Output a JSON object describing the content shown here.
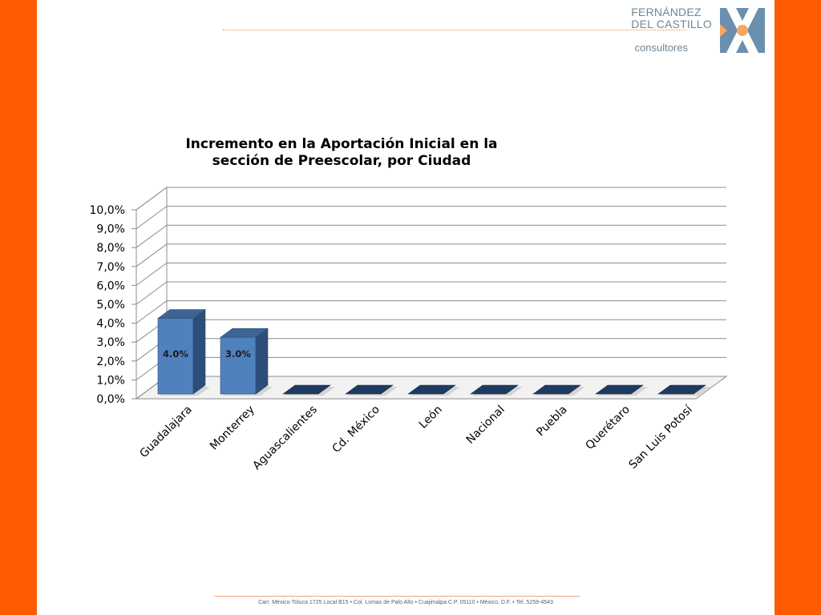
{
  "header": {
    "brand_line1": "FERNÁNDEZ",
    "brand_line2": "DEL CASTILLO",
    "brand_sub": "consultores",
    "logo_icon": "x-logo-icon",
    "accent_color": "#ff5a00",
    "logo_color": "#6b8fae"
  },
  "footer": {
    "address": "Carr. México-Toluca 1725 Local B15 • Col. Lomas de Palo Alto • Cuajimalpa C.P. 05110 • México, D.F. • Tel. 5259-4543"
  },
  "chart_data": {
    "type": "bar",
    "title_line1": "Incremento en la Aportación Inicial en la",
    "title_line2": "sección de Preescolar, por Ciudad",
    "categories": [
      "Guadalajara",
      "Monterrey",
      "Aguascalientes",
      "Cd. México",
      "León",
      "Nacional",
      "Puebla",
      "Querétaro",
      "San Luis Potosí"
    ],
    "values": [
      4.0,
      3.0,
      0,
      0,
      0,
      0,
      0,
      0,
      0
    ],
    "data_labels": [
      "4.0%",
      "3.0%",
      "",
      "",
      "",
      "",
      "",
      "",
      ""
    ],
    "ylim": [
      0,
      10
    ],
    "y_ticks": [
      "0,0%",
      "1,0%",
      "2,0%",
      "3,0%",
      "4,0%",
      "5,0%",
      "6,0%",
      "7,0%",
      "8,0%",
      "9,0%",
      "10,0%"
    ],
    "xlabel": "",
    "ylabel": "",
    "grid": true,
    "style": "3d-column",
    "bar_color": "#4f81bd"
  }
}
